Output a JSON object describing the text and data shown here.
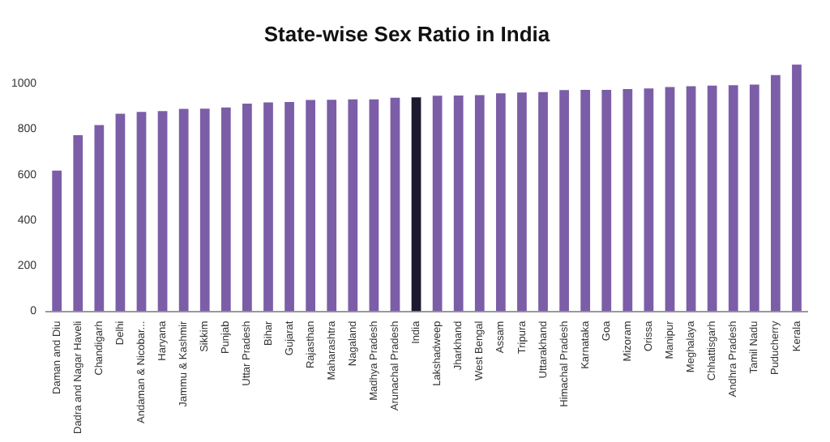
{
  "chart_data": {
    "type": "bar",
    "title": "State-wise Sex Ratio in India",
    "categories": [
      "Daman and Diu",
      "Dadra and Nagar Haveli",
      "Chandigarh",
      "Delhi",
      "Andaman & Nicobar...",
      "Haryana",
      "Jammu & Kashmir",
      "Sikkim",
      "Punjab",
      "Uttar Pradesh",
      "Bihar",
      "Gujarat",
      "Rajasthan",
      "Maharashtra",
      "Nagaland",
      "Madhya Pradesh",
      "Arunachal Pradesh",
      "India",
      "Lakshadweep",
      "Jharkhand",
      "West Bengal",
      "Assam",
      "Tripura",
      "Uttarakhand",
      "Himachal Pradesh",
      "Karnataka",
      "Goa",
      "Mizoram",
      "Orissa",
      "Manipur",
      "Meghalaya",
      "Chhattisgarh",
      "Andhra Pradesh",
      "Tamil Nadu",
      "Puducherry",
      "Kerala"
    ],
    "values": [
      618,
      774,
      818,
      868,
      876,
      879,
      889,
      890,
      895,
      912,
      918,
      919,
      928,
      929,
      931,
      931,
      938,
      940,
      947,
      948,
      950,
      958,
      961,
      963,
      972,
      973,
      973,
      976,
      979,
      985,
      989,
      991,
      993,
      996,
      1038,
      1084
    ],
    "colors": [
      "#7b5ea7",
      "#7b5ea7",
      "#7b5ea7",
      "#7b5ea7",
      "#7b5ea7",
      "#7b5ea7",
      "#7b5ea7",
      "#7b5ea7",
      "#7b5ea7",
      "#7b5ea7",
      "#7b5ea7",
      "#7b5ea7",
      "#7b5ea7",
      "#7b5ea7",
      "#7b5ea7",
      "#7b5ea7",
      "#7b5ea7",
      "#1c1a2e",
      "#7b5ea7",
      "#7b5ea7",
      "#7b5ea7",
      "#7b5ea7",
      "#7b5ea7",
      "#7b5ea7",
      "#7b5ea7",
      "#7b5ea7",
      "#7b5ea7",
      "#7b5ea7",
      "#7b5ea7",
      "#7b5ea7",
      "#7b5ea7",
      "#7b5ea7",
      "#7b5ea7",
      "#7b5ea7",
      "#7b5ea7",
      "#7b5ea7"
    ],
    "ylim": [
      0,
      1100
    ],
    "yticks": [
      0,
      200,
      400,
      600,
      800,
      1000
    ],
    "grid": false,
    "legend": false
  }
}
